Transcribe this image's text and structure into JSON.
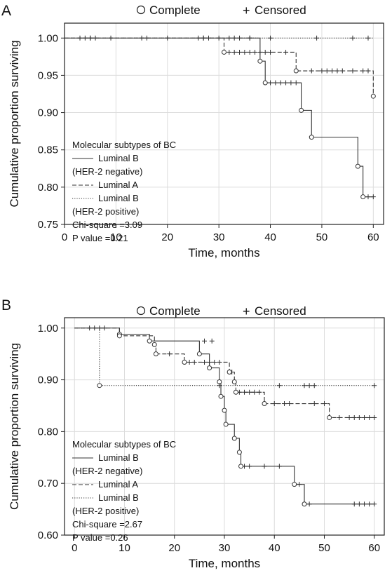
{
  "chart_data": [
    {
      "type": "line",
      "panel_label": "A",
      "legend_top": {
        "complete": "Complete",
        "censored": "Censored",
        "complete_symbol": "○",
        "censored_symbol": "+"
      },
      "xlabel": "Time, months",
      "ylabel": "Cumulative proportion surviving",
      "xlim": [
        0,
        62
      ],
      "ylim": [
        0.75,
        1.02
      ],
      "xticks": [
        0,
        10,
        20,
        30,
        40,
        50,
        60
      ],
      "yticks": [
        0.75,
        0.8,
        0.85,
        0.9,
        0.95,
        1.0
      ],
      "ytick_labels": [
        "0.75",
        "0.80",
        "0.85",
        "0.90",
        "0.95",
        "1.00"
      ],
      "grid": true,
      "inner_legend": {
        "title": "Molecular subtypes of BC",
        "entries": [
          {
            "style": "solid",
            "label": "Luminal B",
            "label2": "(HER-2 negative)"
          },
          {
            "style": "dash",
            "label": "Luminal A"
          },
          {
            "style": "dot",
            "label": "Luminal B",
            "label2": "(HER-2 positive)"
          }
        ],
        "stats": [
          "Chi-square =3.09",
          "P value =0.21"
        ]
      },
      "series": [
        {
          "style": "solid",
          "steps": [
            [
              0,
              1.0
            ],
            [
              38,
              0.969
            ],
            [
              39,
              0.94
            ],
            [
              46,
              0.903
            ],
            [
              48,
              0.867
            ],
            [
              57,
              0.828
            ],
            [
              58,
              0.787
            ],
            [
              60,
              0.787
            ]
          ],
          "events": [
            [
              38,
              0.969
            ],
            [
              39,
              0.94
            ],
            [
              46,
              0.903
            ],
            [
              48,
              0.867
            ],
            [
              57,
              0.828
            ],
            [
              58,
              0.787
            ]
          ],
          "censors": [
            [
              3,
              1.0
            ],
            [
              4,
              1.0
            ],
            [
              5,
              1.0
            ],
            [
              6,
              1.0
            ],
            [
              9,
              1.0
            ],
            [
              16,
              1.0
            ],
            [
              20,
              1.0
            ],
            [
              26,
              1.0
            ],
            [
              27,
              1.0
            ],
            [
              28,
              1.0
            ],
            [
              30,
              1.0
            ],
            [
              32,
              1.0
            ],
            [
              34,
              1.0
            ],
            [
              36,
              1.0
            ],
            [
              40,
              0.94
            ],
            [
              41,
              0.94
            ],
            [
              42,
              0.94
            ],
            [
              43,
              0.94
            ],
            [
              44,
              0.94
            ],
            [
              45,
              0.94
            ],
            [
              59,
              0.787
            ],
            [
              60,
              0.787
            ]
          ]
        },
        {
          "style": "dash",
          "steps": [
            [
              0,
              1.0
            ],
            [
              31,
              0.981
            ],
            [
              45,
              0.956
            ],
            [
              60,
              0.922
            ]
          ],
          "events": [
            [
              31,
              0.981
            ],
            [
              45,
              0.956
            ],
            [
              60,
              0.922
            ]
          ],
          "censors": [
            [
              5,
              1.0
            ],
            [
              15,
              1.0
            ],
            [
              27,
              1.0
            ],
            [
              32,
              0.981
            ],
            [
              33,
              0.981
            ],
            [
              34,
              0.981
            ],
            [
              35,
              0.981
            ],
            [
              36,
              0.981
            ],
            [
              37,
              0.981
            ],
            [
              38,
              0.981
            ],
            [
              39,
              0.981
            ],
            [
              40,
              0.981
            ],
            [
              43,
              0.981
            ],
            [
              48,
              0.956
            ],
            [
              50,
              0.956
            ],
            [
              51,
              0.956
            ],
            [
              52,
              0.956
            ],
            [
              53,
              0.956
            ],
            [
              54,
              0.956
            ],
            [
              56,
              0.956
            ],
            [
              58,
              0.956
            ],
            [
              59,
              0.956
            ]
          ]
        },
        {
          "style": "dot",
          "steps": [
            [
              0,
              1.0
            ],
            [
              60,
              1.0
            ]
          ],
          "events": [],
          "censors": [
            [
              33,
              1.0
            ],
            [
              36,
              1.0
            ],
            [
              40,
              1.0
            ],
            [
              49,
              1.0
            ],
            [
              56,
              1.0
            ],
            [
              59,
              1.0
            ]
          ]
        }
      ]
    },
    {
      "type": "line",
      "panel_label": "B",
      "legend_top": {
        "complete": "Complete",
        "censored": "Censored",
        "complete_symbol": "○",
        "censored_symbol": "+"
      },
      "xlabel": "Time, months",
      "ylabel": "Cumulative proportion surviving",
      "xlim": [
        -2,
        62
      ],
      "ylim": [
        0.6,
        1.02
      ],
      "xticks": [
        0,
        10,
        20,
        30,
        40,
        50,
        60
      ],
      "yticks": [
        0.6,
        0.7,
        0.8,
        0.9,
        1.0
      ],
      "ytick_labels": [
        "0.60",
        "0.70",
        "0.80",
        "0.90",
        "1.00"
      ],
      "grid": true,
      "inner_legend": {
        "title": "Molecular subtypes of BC",
        "entries": [
          {
            "style": "solid",
            "label": "Luminal B",
            "label2": "(HER-2 negative)"
          },
          {
            "style": "dash",
            "label": "Luminal A"
          },
          {
            "style": "dot",
            "label": "Luminal B",
            "label2": "(HER-2 positive)"
          }
        ],
        "stats": [
          "Chi-square =2.67",
          "P value =0.26"
        ]
      },
      "series": [
        {
          "style": "solid",
          "steps": [
            [
              0,
              1.0
            ],
            [
              9,
              0.988
            ],
            [
              15,
              0.975
            ],
            [
              25,
              0.95
            ],
            [
              27,
              0.923
            ],
            [
              29,
              0.896
            ],
            [
              29.3,
              0.868
            ],
            [
              30,
              0.841
            ],
            [
              30.3,
              0.814
            ],
            [
              32,
              0.787
            ],
            [
              33,
              0.76
            ],
            [
              33.3,
              0.733
            ],
            [
              44,
              0.698
            ],
            [
              46,
              0.66
            ],
            [
              60,
              0.66
            ]
          ],
          "events": [
            [
              9,
              0.988
            ],
            [
              15,
              0.975
            ],
            [
              25,
              0.95
            ],
            [
              27,
              0.923
            ],
            [
              29,
              0.896
            ],
            [
              29.3,
              0.868
            ],
            [
              30,
              0.841
            ],
            [
              30.3,
              0.814
            ],
            [
              32,
              0.787
            ],
            [
              33,
              0.76
            ],
            [
              33.3,
              0.733
            ],
            [
              44,
              0.698
            ],
            [
              46,
              0.66
            ]
          ],
          "censors": [
            [
              26,
              0.975
            ],
            [
              27.5,
              0.975
            ],
            [
              34,
              0.733
            ],
            [
              35,
              0.733
            ],
            [
              38,
              0.733
            ],
            [
              41,
              0.733
            ],
            [
              45,
              0.698
            ],
            [
              47,
              0.66
            ],
            [
              56,
              0.66
            ],
            [
              57,
              0.66
            ],
            [
              58,
              0.66
            ],
            [
              59,
              0.66
            ],
            [
              60,
              0.66
            ]
          ]
        },
        {
          "style": "dash",
          "steps": [
            [
              0,
              1.0
            ],
            [
              9,
              0.985
            ],
            [
              16,
              0.968
            ],
            [
              16.3,
              0.95
            ],
            [
              22,
              0.934
            ],
            [
              31,
              0.915
            ],
            [
              32,
              0.896
            ],
            [
              32.3,
              0.876
            ],
            [
              38,
              0.854
            ],
            [
              51,
              0.827
            ],
            [
              60,
              0.827
            ]
          ],
          "events": [
            [
              9,
              0.985
            ],
            [
              16,
              0.968
            ],
            [
              16.3,
              0.95
            ],
            [
              22,
              0.934
            ],
            [
              31,
              0.915
            ],
            [
              32,
              0.896
            ],
            [
              32.3,
              0.876
            ],
            [
              38,
              0.854
            ],
            [
              51,
              0.827
            ]
          ],
          "censors": [
            [
              19,
              0.95
            ],
            [
              23,
              0.934
            ],
            [
              24,
              0.934
            ],
            [
              26,
              0.934
            ],
            [
              27,
              0.934
            ],
            [
              28,
              0.934
            ],
            [
              29,
              0.934
            ],
            [
              31.5,
              0.915
            ],
            [
              33,
              0.876
            ],
            [
              34,
              0.876
            ],
            [
              35,
              0.876
            ],
            [
              36,
              0.876
            ],
            [
              37,
              0.876
            ],
            [
              40,
              0.854
            ],
            [
              42,
              0.854
            ],
            [
              43,
              0.854
            ],
            [
              48,
              0.854
            ],
            [
              50,
              0.854
            ],
            [
              53,
              0.827
            ],
            [
              55,
              0.827
            ],
            [
              56,
              0.827
            ],
            [
              57,
              0.827
            ],
            [
              58,
              0.827
            ],
            [
              59,
              0.827
            ],
            [
              60,
              0.827
            ]
          ]
        },
        {
          "style": "dot",
          "steps": [
            [
              0,
              1.0
            ],
            [
              5,
              0.889
            ],
            [
              60,
              0.889
            ]
          ],
          "events": [
            [
              5,
              0.889
            ]
          ],
          "censors": [
            [
              3,
              1.0
            ],
            [
              4,
              1.0
            ],
            [
              5,
              1.0
            ],
            [
              6,
              1.0
            ],
            [
              29,
              0.889
            ],
            [
              41,
              0.889
            ],
            [
              46,
              0.889
            ],
            [
              47,
              0.889
            ],
            [
              48,
              0.889
            ],
            [
              60,
              0.889
            ]
          ]
        }
      ]
    }
  ]
}
